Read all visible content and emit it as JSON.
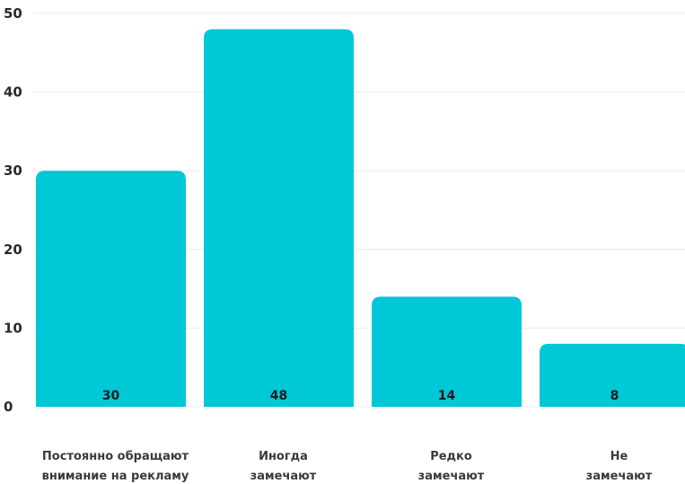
{
  "chart_data": {
    "type": "bar",
    "categories": [
      "Постоянно обращают внимание на рекламу",
      "Иногда замечают",
      "Редко замечают",
      "Не замечают"
    ],
    "category_lines": [
      [
        "Постоянно обращают",
        "внимание на рекламу"
      ],
      [
        "Иногда",
        "замечают"
      ],
      [
        "Редко",
        "замечают"
      ],
      [
        "Не",
        "замечают"
      ]
    ],
    "values": [
      30,
      48,
      14,
      8
    ],
    "value_labels": [
      "30",
      "48",
      "14",
      "8"
    ],
    "yticks": [
      0,
      10,
      20,
      30,
      40,
      50
    ],
    "ylim": [
      0,
      50
    ],
    "title": "",
    "xlabel": "",
    "ylabel": "",
    "grid": true,
    "legend": "none",
    "bar_color": "#00c8d7"
  }
}
